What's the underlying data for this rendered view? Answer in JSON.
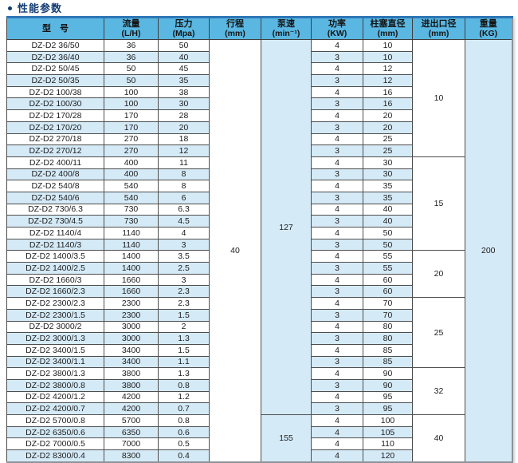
{
  "title": "性能参数",
  "table": {
    "headers": [
      {
        "key": "model",
        "title": "型　号",
        "unit": ""
      },
      {
        "key": "flow",
        "title": "流量",
        "unit": "(L/H)"
      },
      {
        "key": "pressure",
        "title": "压力",
        "unit": "(Mpa)"
      },
      {
        "key": "stroke",
        "title": "行程",
        "unit": "(mm)"
      },
      {
        "key": "speed",
        "title": "泵速",
        "unit": "(min⁻¹)"
      },
      {
        "key": "power",
        "title": "功率",
        "unit": "(KW)"
      },
      {
        "key": "plunger",
        "title": "柱塞直径",
        "unit": "(mm)"
      },
      {
        "key": "port",
        "title": "进出口径",
        "unit": "(mm)"
      },
      {
        "key": "weight",
        "title": "重量",
        "unit": "(KG)"
      }
    ],
    "rows": [
      {
        "model": "DZ-D2 36/50",
        "flow": "36",
        "pressure": "50",
        "power": "4",
        "plunger": "10"
      },
      {
        "model": "DZ-D2 36/40",
        "flow": "36",
        "pressure": "40",
        "power": "3",
        "plunger": "10"
      },
      {
        "model": "DZ-D2 50/45",
        "flow": "50",
        "pressure": "45",
        "power": "4",
        "plunger": "12"
      },
      {
        "model": "DZ-D2 50/35",
        "flow": "50",
        "pressure": "35",
        "power": "3",
        "plunger": "12"
      },
      {
        "model": "DZ-D2 100/38",
        "flow": "100",
        "pressure": "38",
        "power": "4",
        "plunger": "16"
      },
      {
        "model": "DZ-D2 100/30",
        "flow": "100",
        "pressure": "30",
        "power": "3",
        "plunger": "16"
      },
      {
        "model": "DZ-D2 170/28",
        "flow": "170",
        "pressure": "28",
        "power": "4",
        "plunger": "20"
      },
      {
        "model": "DZ-D2 170/20",
        "flow": "170",
        "pressure": "20",
        "power": "3",
        "plunger": "20"
      },
      {
        "model": "DZ-D2 270/18",
        "flow": "270",
        "pressure": "18",
        "power": "4",
        "plunger": "25"
      },
      {
        "model": "DZ-D2 270/12",
        "flow": "270",
        "pressure": "12",
        "power": "3",
        "plunger": "25"
      },
      {
        "model": "DZ-D2 400/11",
        "flow": "400",
        "pressure": "11",
        "power": "4",
        "plunger": "30"
      },
      {
        "model": "DZ-D2 400/8",
        "flow": "400",
        "pressure": "8",
        "power": "3",
        "plunger": "30"
      },
      {
        "model": "DZ-D2 540/8",
        "flow": "540",
        "pressure": "8",
        "power": "4",
        "plunger": "35"
      },
      {
        "model": "DZ-D2 540/6",
        "flow": "540",
        "pressure": "6",
        "power": "3",
        "plunger": "35"
      },
      {
        "model": "DZ-D2 730/6.3",
        "flow": "730",
        "pressure": "6.3",
        "power": "4",
        "plunger": "40"
      },
      {
        "model": "DZ-D2 730/4.5",
        "flow": "730",
        "pressure": "4.5",
        "power": "3",
        "plunger": "40"
      },
      {
        "model": "DZ-D2 1140/4",
        "flow": "1140",
        "pressure": "4",
        "power": "4",
        "plunger": "50"
      },
      {
        "model": "DZ-D2 1140/3",
        "flow": "1140",
        "pressure": "3",
        "power": "3",
        "plunger": "50"
      },
      {
        "model": "DZ-D2 1400/3.5",
        "flow": "1400",
        "pressure": "3.5",
        "power": "4",
        "plunger": "55"
      },
      {
        "model": "DZ-D2 1400/2.5",
        "flow": "1400",
        "pressure": "2.5",
        "power": "3",
        "plunger": "55"
      },
      {
        "model": "DZ-D2 1660/3",
        "flow": "1660",
        "pressure": "3",
        "power": "4",
        "plunger": "60"
      },
      {
        "model": "DZ-D2 1660/2.3",
        "flow": "1660",
        "pressure": "2.3",
        "power": "3",
        "plunger": "60"
      },
      {
        "model": "DZ-D2 2300/2.3",
        "flow": "2300",
        "pressure": "2.3",
        "power": "4",
        "plunger": "70"
      },
      {
        "model": "DZ-D2 2300/1.5",
        "flow": "2300",
        "pressure": "1.5",
        "power": "3",
        "plunger": "70"
      },
      {
        "model": "DZ-D2 3000/2",
        "flow": "3000",
        "pressure": "2",
        "power": "4",
        "plunger": "80"
      },
      {
        "model": "DZ-D2 3000/1.3",
        "flow": "3000",
        "pressure": "1.3",
        "power": "3",
        "plunger": "80"
      },
      {
        "model": "DZ-D2 3400/1.5",
        "flow": "3400",
        "pressure": "1.5",
        "power": "4",
        "plunger": "85"
      },
      {
        "model": "DZ-D2 3400/1.1",
        "flow": "3400",
        "pressure": "1.1",
        "power": "3",
        "plunger": "85"
      },
      {
        "model": "DZ-D2 3800/1.3",
        "flow": "3800",
        "pressure": "1.3",
        "power": "4",
        "plunger": "90"
      },
      {
        "model": "DZ-D2 3800/0.8",
        "flow": "3800",
        "pressure": "0.8",
        "power": "3",
        "plunger": "90"
      },
      {
        "model": "DZ-D2 4200/1.2",
        "flow": "4200",
        "pressure": "1.2",
        "power": "4",
        "plunger": "95"
      },
      {
        "model": "DZ-D2 4200/0.7",
        "flow": "4200",
        "pressure": "0.7",
        "power": "3",
        "plunger": "95"
      },
      {
        "model": "DZ-D2 5700/0.8",
        "flow": "5700",
        "pressure": "0.8",
        "power": "4",
        "plunger": "100"
      },
      {
        "model": "DZ-D2 6350/0.6",
        "flow": "6350",
        "pressure": "0.6",
        "power": "4",
        "plunger": "105"
      },
      {
        "model": "DZ-D2 7000/0.5",
        "flow": "7000",
        "pressure": "0.5",
        "power": "4",
        "plunger": "110"
      },
      {
        "model": "DZ-D2 8300/0.4",
        "flow": "8300",
        "pressure": "0.4",
        "power": "4",
        "plunger": "120"
      }
    ],
    "merged": {
      "stroke": [
        {
          "start": 0,
          "span": 36,
          "value": "40"
        }
      ],
      "speed": [
        {
          "start": 0,
          "span": 32,
          "value": "127"
        },
        {
          "start": 32,
          "span": 4,
          "value": "155"
        }
      ],
      "port": [
        {
          "start": 0,
          "span": 10,
          "value": "10"
        },
        {
          "start": 10,
          "span": 8,
          "value": "15"
        },
        {
          "start": 18,
          "span": 4,
          "value": "20"
        },
        {
          "start": 22,
          "span": 6,
          "value": "25"
        },
        {
          "start": 28,
          "span": 4,
          "value": "32"
        },
        {
          "start": 32,
          "span": 4,
          "value": "40"
        }
      ],
      "weight": [
        {
          "start": 0,
          "span": 36,
          "value": "200"
        }
      ]
    }
  },
  "colors": {
    "header_bg": "#5ab7e1",
    "alt_row_bg": "#d5eaf7",
    "row_bg": "#ffffff",
    "border": "#4d4d4d",
    "table_top_border": "#2d76b4",
    "title_color": "#123c73"
  }
}
